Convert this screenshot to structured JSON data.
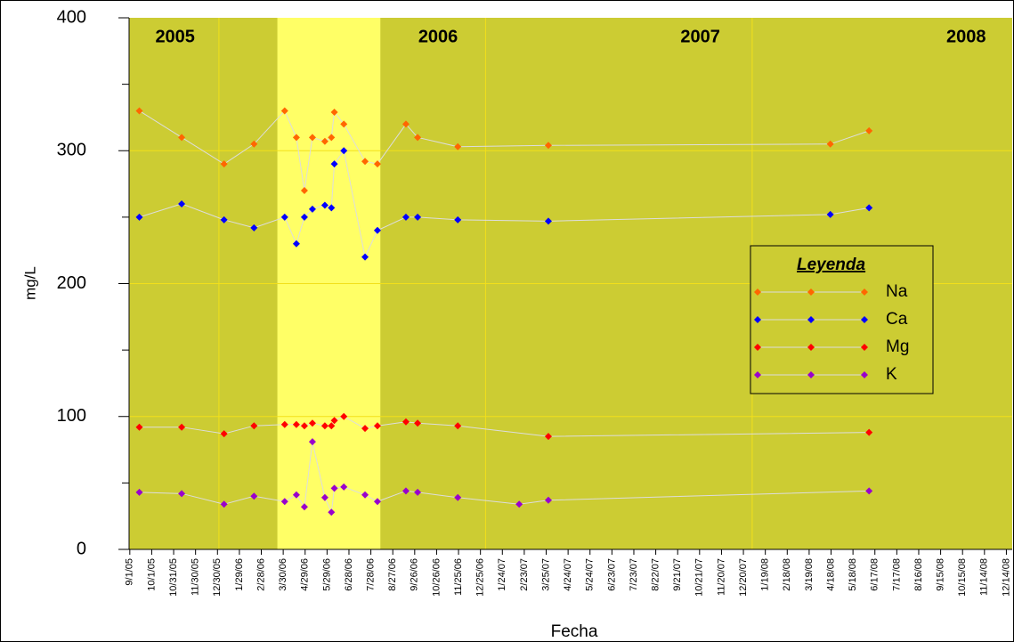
{
  "chart_data": {
    "type": "line",
    "y_label": "mg/L",
    "x_label": "Fecha",
    "legend_title": "Leyenda",
    "legend": "right",
    "background": "#cccc33",
    "highlight": {
      "start": "3/22/06",
      "end": "8/10/06",
      "color": "#ffff66"
    },
    "grid_color": "#f2e01a",
    "xgrid": [
      "1/1/06",
      "1/1/07",
      "1/1/08"
    ],
    "annotations": [
      {
        "text": "2005",
        "x": "11/2/05"
      },
      {
        "text": "2006",
        "x": "10/28/06"
      },
      {
        "text": "2007",
        "x": "10/22/07"
      },
      {
        "text": "2008",
        "x": "10/20/08"
      }
    ],
    "xlim": [
      "8/31/05",
      "12/22/08"
    ],
    "xticks": [
      "9/1/05",
      "10/1/05",
      "10/31/05",
      "11/30/05",
      "12/30/05",
      "1/29/06",
      "2/28/06",
      "3/30/06",
      "4/29/06",
      "5/29/06",
      "6/28/06",
      "7/28/06",
      "8/27/06",
      "9/26/06",
      "10/26/06",
      "11/25/06",
      "12/25/06",
      "1/24/07",
      "2/23/07",
      "3/25/07",
      "4/24/07",
      "5/24/07",
      "6/23/07",
      "7/23/07",
      "8/22/07",
      "9/21/07",
      "10/21/07",
      "11/20/07",
      "12/20/07",
      "1/19/08",
      "2/18/08",
      "3/19/08",
      "4/18/08",
      "5/18/08",
      "6/17/08",
      "7/17/08",
      "8/16/08",
      "9/15/08",
      "10/15/08",
      "11/14/08",
      "12/14/08"
    ],
    "ylim": [
      0,
      400
    ],
    "yticks": [
      0,
      100,
      200,
      300,
      400
    ],
    "yminorticks": [
      50,
      150,
      250,
      350
    ],
    "grid": true,
    "line_color": "#dddddd",
    "series": [
      {
        "name": "Na",
        "color": "#ff6600",
        "x": [
          "9/14/05",
          "11/11/05",
          "1/8/06",
          "2/18/06",
          "4/1/06",
          "4/17/06",
          "4/28/06",
          "5/9/06",
          "5/26/06",
          "6/4/06",
          "6/8/06",
          "6/21/06",
          "7/20/06",
          "8/6/06",
          "9/14/06",
          "9/30/06",
          "11/24/06",
          "3/28/07",
          "4/17/08",
          "6/9/08"
        ],
        "values": [
          330,
          310,
          290,
          305,
          330,
          310,
          270,
          310,
          307,
          310,
          329,
          320,
          292,
          290,
          320,
          310,
          303,
          304,
          305,
          315
        ]
      },
      {
        "name": "Ca",
        "color": "#0000ff",
        "x": [
          "9/14/05",
          "11/11/05",
          "1/8/06",
          "2/18/06",
          "4/1/06",
          "4/17/06",
          "4/28/06",
          "5/9/06",
          "5/26/06",
          "6/4/06",
          "6/8/06",
          "6/21/06",
          "7/20/06",
          "8/6/06",
          "9/14/06",
          "9/30/06",
          "11/24/06",
          "3/28/07",
          "4/17/08",
          "6/9/08"
        ],
        "values": [
          250,
          260,
          248,
          242,
          250,
          230,
          250,
          256,
          259,
          257,
          290,
          300,
          220,
          240,
          250,
          250,
          248,
          247,
          252,
          257
        ]
      },
      {
        "name": "Mg",
        "color": "#ff0000",
        "x": [
          "9/14/05",
          "11/11/05",
          "1/8/06",
          "2/18/06",
          "4/1/06",
          "4/17/06",
          "4/28/06",
          "5/9/06",
          "5/26/06",
          "6/4/06",
          "6/8/06",
          "6/21/06",
          "7/20/06",
          "8/6/06",
          "9/14/06",
          "9/30/06",
          "11/24/06",
          "3/28/07",
          "6/9/08"
        ],
        "values": [
          92,
          92,
          87,
          93,
          94,
          94,
          93,
          95,
          93,
          93,
          97,
          100,
          91,
          93,
          96,
          95,
          93,
          85,
          88
        ]
      },
      {
        "name": "K",
        "color": "#9900cc",
        "x": [
          "9/14/05",
          "11/11/05",
          "1/8/06",
          "2/18/06",
          "4/1/06",
          "4/17/06",
          "4/28/06",
          "5/9/06",
          "5/26/06",
          "6/4/06",
          "6/8/06",
          "6/21/06",
          "7/20/06",
          "8/6/06",
          "9/14/06",
          "9/30/06",
          "11/24/06",
          "2/16/07",
          "3/28/07",
          "6/9/08"
        ],
        "values": [
          43,
          42,
          34,
          40,
          36,
          41,
          32,
          81,
          39,
          28,
          46,
          47,
          41,
          36,
          44,
          43,
          39,
          34,
          37,
          44
        ]
      }
    ]
  }
}
